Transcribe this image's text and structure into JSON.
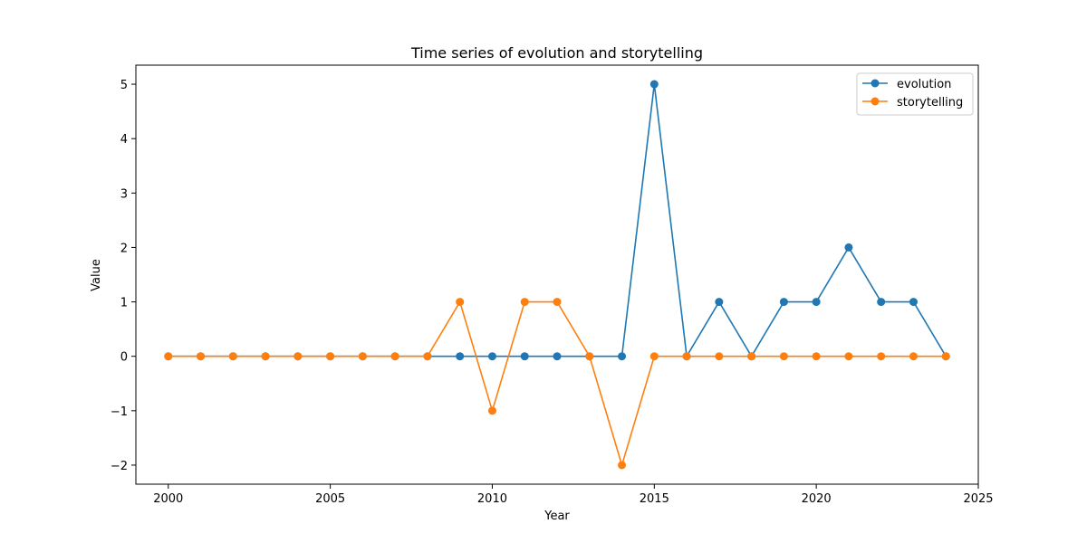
{
  "chart_data": {
    "type": "line",
    "title": "Time series of evolution and storytelling",
    "xlabel": "Year",
    "ylabel": "Value",
    "xlim": [
      1999,
      2025
    ],
    "ylim": [
      -2.35,
      5.35
    ],
    "xticks": [
      2000,
      2005,
      2010,
      2015,
      2020,
      2025
    ],
    "yticks": [
      -2,
      -1,
      0,
      1,
      2,
      3,
      4,
      5
    ],
    "ytick_labels": [
      "−2",
      "−1",
      "0",
      "1",
      "2",
      "3",
      "4",
      "5"
    ],
    "grid": false,
    "legend_position": "top-right",
    "x": [
      2000,
      2001,
      2002,
      2003,
      2004,
      2005,
      2006,
      2007,
      2008,
      2009,
      2010,
      2011,
      2012,
      2013,
      2014,
      2015,
      2016,
      2017,
      2018,
      2019,
      2020,
      2021,
      2022,
      2023,
      2024
    ],
    "series": [
      {
        "name": "evolution",
        "color": "#1f77b4",
        "marker": "circle",
        "values": [
          0,
          0,
          0,
          0,
          0,
          0,
          0,
          0,
          0,
          0,
          0,
          0,
          0,
          0,
          0,
          5,
          0,
          1,
          0,
          1,
          1,
          2,
          1,
          1,
          0
        ]
      },
      {
        "name": "storytelling",
        "color": "#ff7f0e",
        "marker": "circle",
        "values": [
          0,
          0,
          0,
          0,
          0,
          0,
          0,
          0,
          0,
          1,
          -1,
          1,
          1,
          0,
          -2,
          0,
          0,
          0,
          0,
          0,
          0,
          0,
          0,
          0,
          0
        ]
      }
    ]
  }
}
